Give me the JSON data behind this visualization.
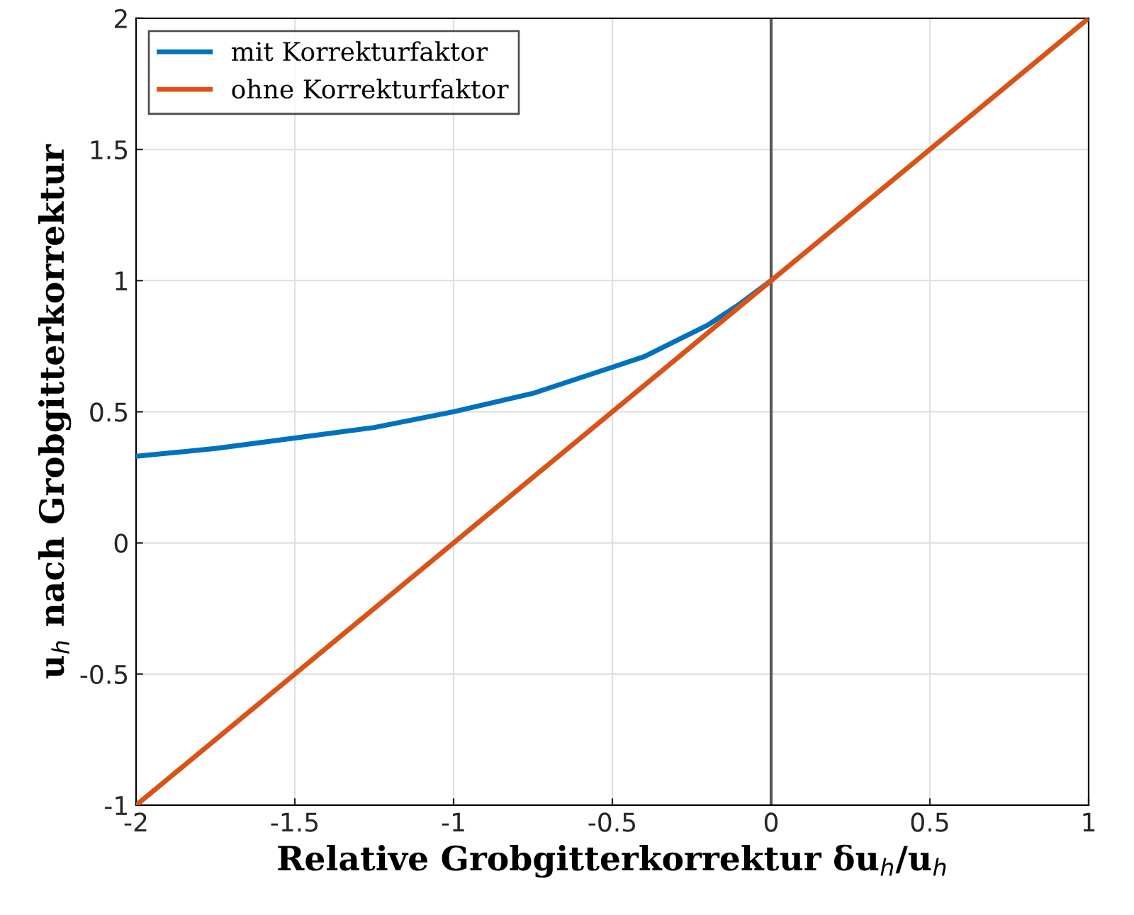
{
  "chart_data": {
    "type": "line",
    "xlabel": "Relative Grobgitterkorrektur δu$_{h}$/u$_{h}$",
    "ylabel": "u$_{h}$ nach Grobgitterkorrektur",
    "series": [
      {
        "name": "mit Korrekturfaktor",
        "color": "#0072bd",
        "x": [
          -2,
          -1.75,
          -1.5,
          -1.25,
          -1,
          -0.75,
          -0.6,
          -0.5,
          -0.4,
          -0.3,
          -0.2,
          -0.1,
          0
        ],
        "values": [
          0.33,
          0.36,
          0.4,
          0.44,
          0.5,
          0.57,
          0.63,
          0.67,
          0.71,
          0.77,
          0.83,
          0.91,
          1
        ]
      },
      {
        "name": "ohne Korrekturfaktor",
        "color": "#d95319",
        "x": [
          -2,
          1
        ],
        "values": [
          -1,
          2
        ]
      }
    ],
    "xlim": [
      -2,
      1
    ],
    "ylim": [
      -1,
      2
    ],
    "xticks": [
      -2,
      -1.5,
      -1,
      -0.5,
      0,
      0.5,
      1
    ],
    "yticks": [
      -1,
      -0.5,
      0,
      0.5,
      1,
      1.5,
      2
    ],
    "ref_lines": [
      {
        "axis": "x",
        "value": 0,
        "color": "#595959"
      }
    ],
    "grid": true,
    "legend": "top left",
    "line_style": "solid",
    "marker": "none"
  }
}
